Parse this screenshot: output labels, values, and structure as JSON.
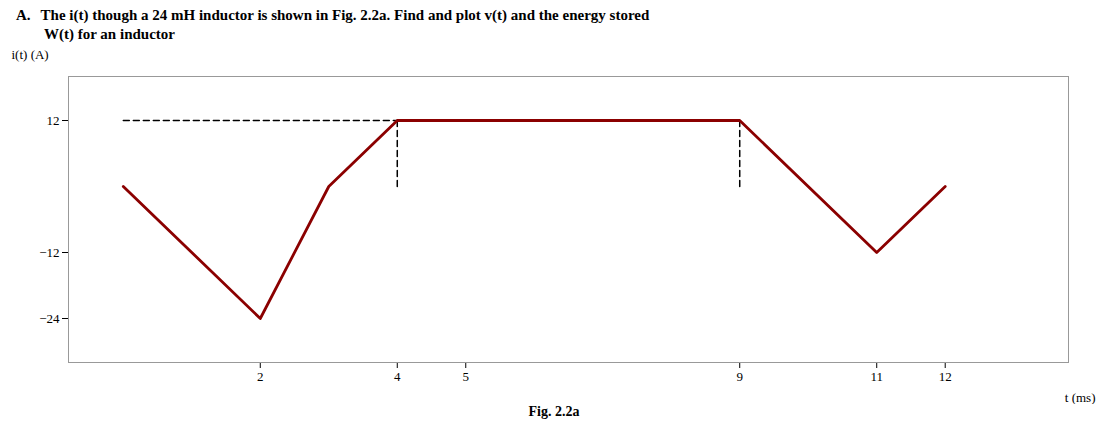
{
  "chart_data": {
    "type": "line",
    "title": "A.",
    "subtitle": [
      "The i(t) though a 24 mH inductor is shown in Fig. 2.2a.  Find and plot v(t) and the energy stored",
      "W(t) for an inductor"
    ],
    "annotations": [
      "Fig. 2.2a"
    ],
    "x_label": "t (ms)",
    "y_label": "i(t) (A)",
    "x": [
      0,
      2,
      3,
      4,
      5,
      9,
      11,
      12
    ],
    "values": [
      0,
      -24,
      0,
      12,
      12,
      12,
      -12,
      0
    ],
    "color": "#8B0000",
    "dashed_lines": [
      {
        "x": [
          0,
          4
        ],
        "y": [
          12,
          12
        ]
      },
      {
        "x": [
          4,
          4
        ],
        "y": [
          0,
          12
        ]
      },
      {
        "x": [
          9,
          9
        ],
        "y": [
          0,
          12
        ]
      }
    ],
    "xlim": [
      -0.8,
      13.8
    ],
    "ylim": [
      -32,
      20
    ],
    "xticks": [
      2,
      4,
      5,
      9,
      11,
      12
    ],
    "yticks": [
      12,
      -12,
      -24
    ],
    "grid": false
  }
}
